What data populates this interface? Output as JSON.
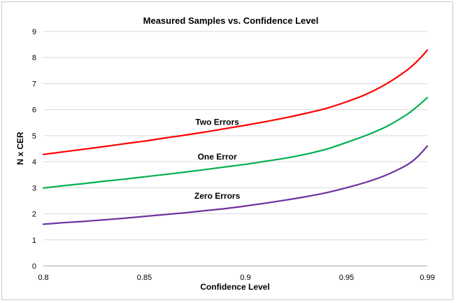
{
  "chart_data": {
    "type": "line",
    "title": "Measured Samples vs. Confidence Level",
    "xlabel": "Confidence Level",
    "ylabel": "N x CER",
    "xlim": [
      0.8,
      0.99
    ],
    "ylim": [
      0,
      9
    ],
    "x_ticks": [
      0.8,
      0.85,
      0.9,
      0.95,
      0.99
    ],
    "x_tick_labels": [
      "0.8",
      "0.85",
      "0.9",
      "0.95",
      "0.99"
    ],
    "y_ticks": [
      0,
      1,
      2,
      3,
      4,
      5,
      6,
      7,
      8,
      9
    ],
    "y_tick_labels": [
      "0",
      "1",
      "2",
      "3",
      "4",
      "5",
      "6",
      "7",
      "8",
      "9"
    ],
    "grid": "horizontal",
    "legend": "none",
    "series": [
      {
        "name": "Two Errors",
        "color": "#ff0000",
        "label_at": [
          0.885,
          5.42
        ],
        "x": [
          0.8,
          0.81,
          0.82,
          0.83,
          0.84,
          0.85,
          0.86,
          0.87,
          0.88,
          0.89,
          0.9,
          0.91,
          0.92,
          0.93,
          0.94,
          0.95,
          0.96,
          0.97,
          0.98,
          0.985,
          0.99
        ],
        "y": [
          4.28,
          4.38,
          4.48,
          4.58,
          4.69,
          4.79,
          4.91,
          5.02,
          5.14,
          5.27,
          5.4,
          5.54,
          5.69,
          5.86,
          6.05,
          6.3,
          6.6,
          7.0,
          7.52,
          7.86,
          8.28
        ]
      },
      {
        "name": "One Error",
        "color": "#00b050",
        "label_at": [
          0.885,
          4.08
        ],
        "x": [
          0.8,
          0.81,
          0.82,
          0.83,
          0.84,
          0.85,
          0.86,
          0.87,
          0.88,
          0.89,
          0.9,
          0.91,
          0.92,
          0.93,
          0.94,
          0.95,
          0.96,
          0.97,
          0.98,
          0.985,
          0.99
        ],
        "y": [
          2.99,
          3.08,
          3.16,
          3.25,
          3.33,
          3.42,
          3.51,
          3.6,
          3.7,
          3.8,
          3.9,
          4.02,
          4.14,
          4.29,
          4.48,
          4.74,
          5.02,
          5.36,
          5.82,
          6.12,
          6.46
        ]
      },
      {
        "name": "Zero Errors",
        "color": "#7030a0",
        "label_at": [
          0.885,
          2.58
        ],
        "x": [
          0.8,
          0.81,
          0.82,
          0.83,
          0.84,
          0.85,
          0.86,
          0.87,
          0.88,
          0.89,
          0.9,
          0.91,
          0.92,
          0.93,
          0.94,
          0.95,
          0.96,
          0.97,
          0.98,
          0.985,
          0.99
        ],
        "y": [
          1.6,
          1.66,
          1.71,
          1.77,
          1.83,
          1.9,
          1.97,
          2.04,
          2.12,
          2.2,
          2.3,
          2.41,
          2.53,
          2.66,
          2.81,
          3.0,
          3.22,
          3.5,
          3.88,
          4.18,
          4.6
        ]
      }
    ]
  }
}
